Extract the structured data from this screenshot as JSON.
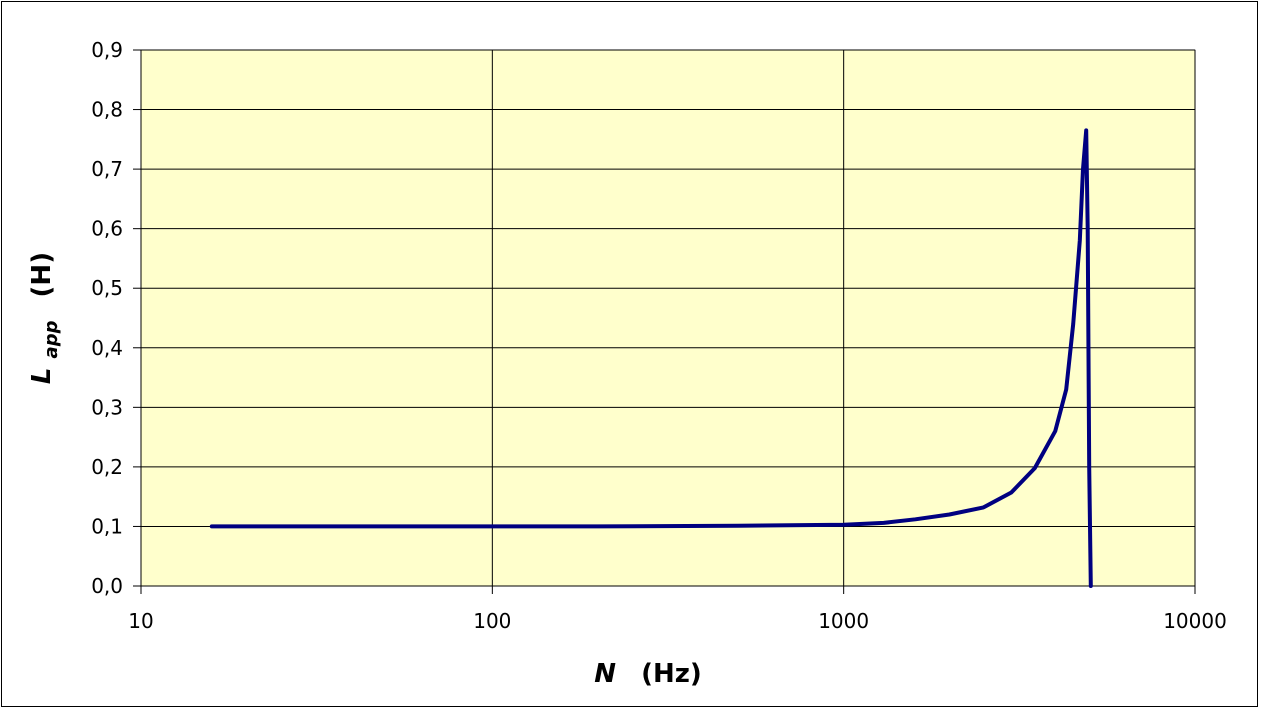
{
  "chart_data": {
    "type": "line",
    "xscale": "log",
    "xlim": [
      10,
      10000
    ],
    "ylim": [
      0,
      0.9
    ],
    "grid": true,
    "legend": "none",
    "colors": {
      "plot_bg": "#ffffcc",
      "line": "#000080",
      "grid": "#000000"
    },
    "xlabel": {
      "var": "N",
      "unit": "(Hz)"
    },
    "ylabel": {
      "var": "L",
      "sub": "app",
      "unit": "(H)"
    },
    "x_ticks": [
      {
        "value": 10,
        "label": "10"
      },
      {
        "value": 100,
        "label": "100"
      },
      {
        "value": 1000,
        "label": "1000"
      },
      {
        "value": 10000,
        "label": "10000"
      }
    ],
    "y_ticks": [
      {
        "value": 0.0,
        "label": "0,0"
      },
      {
        "value": 0.1,
        "label": "0,1"
      },
      {
        "value": 0.2,
        "label": "0,2"
      },
      {
        "value": 0.3,
        "label": "0,3"
      },
      {
        "value": 0.4,
        "label": "0,4"
      },
      {
        "value": 0.5,
        "label": "0,5"
      },
      {
        "value": 0.6,
        "label": "0,6"
      },
      {
        "value": 0.7,
        "label": "0,7"
      },
      {
        "value": 0.8,
        "label": "0,8"
      },
      {
        "value": 0.9,
        "label": "0,9"
      }
    ],
    "series": [
      {
        "x": [
          15.9,
          50,
          100,
          200,
          500,
          1000,
          1300,
          1600,
          2000,
          2500,
          3000,
          3500,
          4000,
          4300,
          4500,
          4700,
          4800,
          4900,
          4950,
          5000,
          5050
        ],
        "y": [
          0.1,
          0.1,
          0.1,
          0.1,
          0.101,
          0.103,
          0.106,
          0.112,
          0.12,
          0.132,
          0.157,
          0.198,
          0.26,
          0.33,
          0.44,
          0.58,
          0.7,
          0.765,
          0.6,
          0.2,
          0.0
        ]
      }
    ]
  }
}
